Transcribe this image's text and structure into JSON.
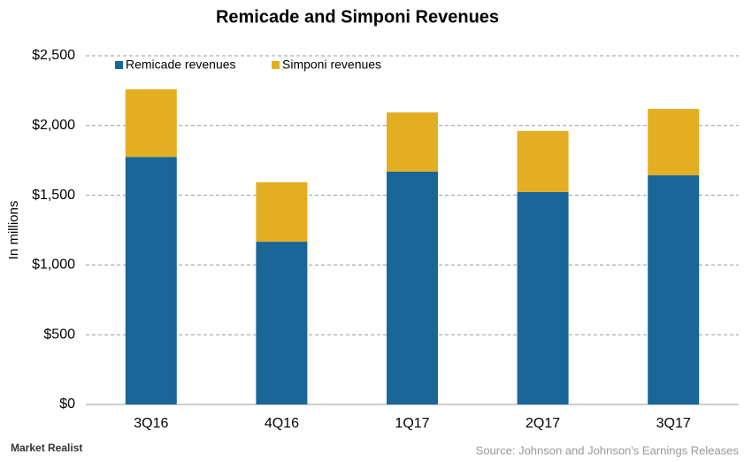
{
  "chart_data": {
    "type": "stacked_bar",
    "title": "Remicade and Simponi Revenues",
    "y_label": "In millions",
    "categories": [
      "3Q16",
      "4Q16",
      "1Q17",
      "2Q17",
      "3Q17"
    ],
    "series": [
      {
        "name": "Remicade revenues",
        "color": "#1a6699",
        "values": [
          1775,
          1167,
          1669,
          1523,
          1643
        ]
      },
      {
        "name": "Simponi revenues",
        "color": "#e3ae22",
        "values": [
          485,
          426,
          425,
          438,
          476
        ]
      }
    ],
    "ylim": [
      0,
      2500
    ],
    "yticks": [
      {
        "value": 0,
        "label": "$0"
      },
      {
        "value": 500,
        "label": "$500"
      },
      {
        "value": 1000,
        "label": "$1,000"
      },
      {
        "value": 1500,
        "label": "$1,500"
      },
      {
        "value": 2000,
        "label": "$2,000"
      },
      {
        "value": 2500,
        "label": "$2,500"
      }
    ],
    "grid": true,
    "legend": "top-left",
    "source": "Source: Johnson and Johnson's Earnings Releases",
    "brand": "Market Realist"
  }
}
